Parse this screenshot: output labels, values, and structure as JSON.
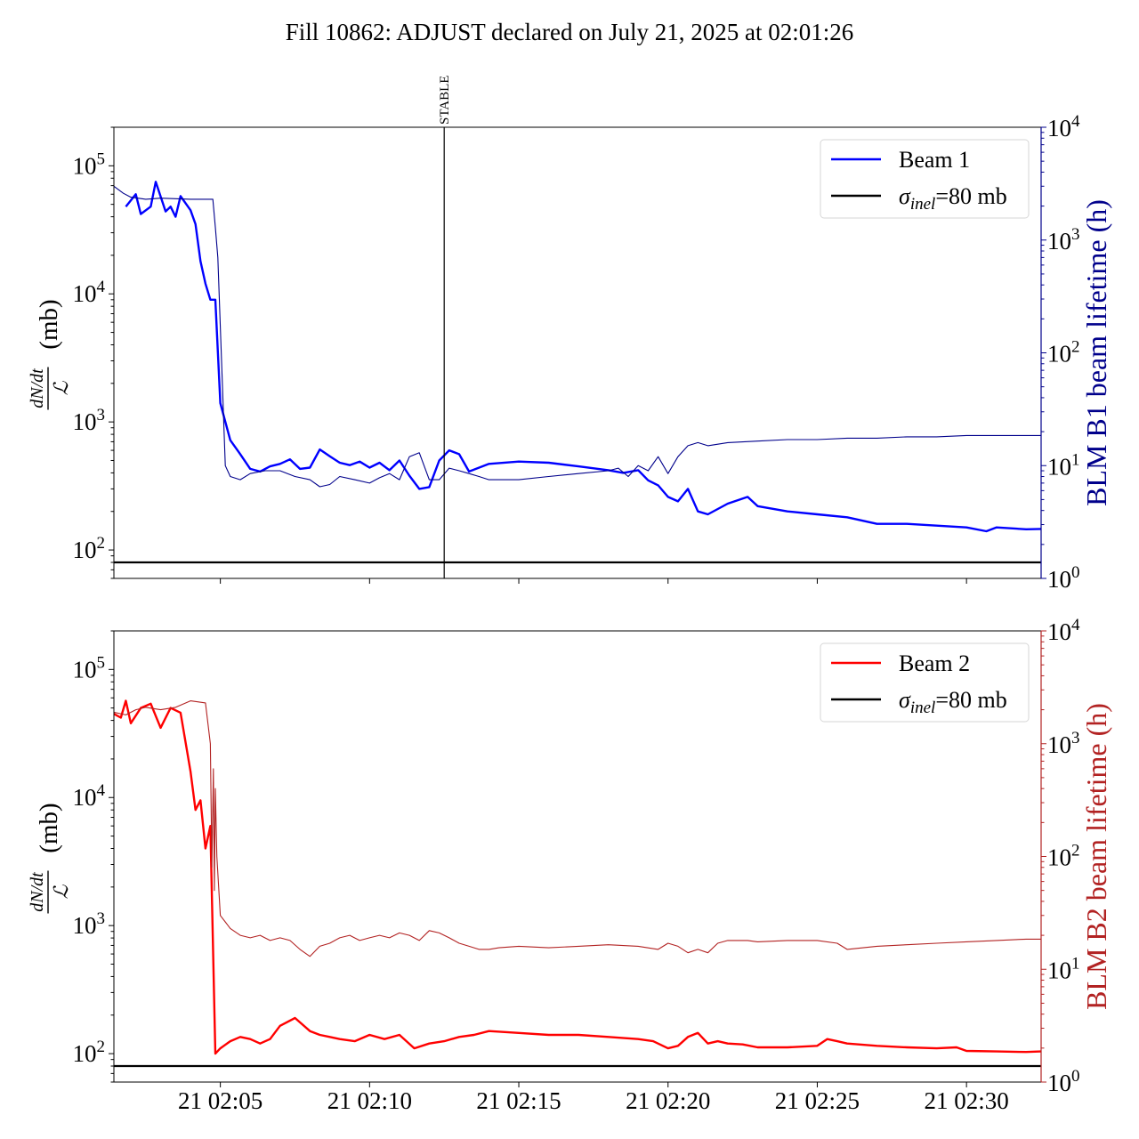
{
  "figure": {
    "title": "Fill 10862: ADJUST declared on July 21, 2025 at 02:01:26"
  },
  "chart_data": [
    {
      "type": "line",
      "panel": "top",
      "xaxis": {
        "type": "time",
        "range": [
          "2025-07-21 02:01:26",
          "2025-07-21 02:32:30"
        ],
        "tick_labels": [
          "21 02:05",
          "21 02:10",
          "21 02:15",
          "21 02:20",
          "21 02:25",
          "21 02:30"
        ],
        "tick_labels_shown": false
      },
      "ylabel": {
        "fraction_top": "dN/dt",
        "fraction_bottom": "ℒ",
        "unit": "(mb)"
      },
      "y_scale": "log",
      "ylim": [
        60,
        200000
      ],
      "y_ticks": [
        {
          "base": "10",
          "exp": "2"
        },
        {
          "base": "10",
          "exp": "3"
        },
        {
          "base": "10",
          "exp": "4"
        },
        {
          "base": "10",
          "exp": "5"
        }
      ],
      "y2label": "BLM B1 beam lifetime (h)",
      "y2_scale": "log",
      "y2lim": [
        1,
        10000
      ],
      "y2_ticks": [
        {
          "base": "10",
          "exp": "0"
        },
        {
          "base": "10",
          "exp": "1"
        },
        {
          "base": "10",
          "exp": "2"
        },
        {
          "base": "10",
          "exp": "3"
        },
        {
          "base": "10",
          "exp": "4"
        }
      ],
      "y2_color": "#00008b",
      "annotations": [
        {
          "label": "STABLE",
          "x": "2025-07-21 02:12:30",
          "type": "vline"
        }
      ],
      "hline": {
        "y": 80,
        "label_prefix": "σ",
        "label_sub": "inel",
        "label_suffix": "=80 mb",
        "color": "#000000"
      },
      "legend": {
        "placement": "top-right"
      },
      "series": [
        {
          "name": "Beam 1",
          "axis": "left",
          "color": "#0000ff",
          "x": [
            "02:01:50",
            "02:02:10",
            "02:02:20",
            "02:02:40",
            "02:02:50",
            "02:03:10",
            "02:03:20",
            "02:03:30",
            "02:03:40",
            "02:04:00",
            "02:04:10",
            "02:04:20",
            "02:04:30",
            "02:04:40",
            "02:04:50",
            "02:05:00",
            "02:05:20",
            "02:05:40",
            "02:06:00",
            "02:06:20",
            "02:06:40",
            "02:07:00",
            "02:07:20",
            "02:07:40",
            "02:08:00",
            "02:08:20",
            "02:08:40",
            "02:09:00",
            "02:09:20",
            "02:09:40",
            "02:10:00",
            "02:10:20",
            "02:10:40",
            "02:11:00",
            "02:11:20",
            "02:11:40",
            "02:12:00",
            "02:12:20",
            "02:12:40",
            "02:13:00",
            "02:13:20",
            "02:14:00",
            "02:15:00",
            "02:16:00",
            "02:17:00",
            "02:18:00",
            "02:18:30",
            "02:19:00",
            "02:19:20",
            "02:19:40",
            "02:20:00",
            "02:20:20",
            "02:20:40",
            "02:21:00",
            "02:21:20",
            "02:22:00",
            "02:22:40",
            "02:23:00",
            "02:24:00",
            "02:25:00",
            "02:26:00",
            "02:27:00",
            "02:28:00",
            "02:29:00",
            "02:30:00",
            "02:30:40",
            "02:31:00",
            "02:32:00",
            "02:32:30"
          ],
          "values": [
            48000,
            60000,
            42000,
            48000,
            75000,
            44000,
            48000,
            40000,
            58000,
            45000,
            35000,
            18000,
            12000,
            9000,
            9000,
            1400,
            720,
            560,
            430,
            410,
            450,
            470,
            510,
            430,
            440,
            610,
            540,
            480,
            460,
            490,
            440,
            480,
            420,
            500,
            380,
            300,
            310,
            500,
            600,
            560,
            410,
            470,
            490,
            480,
            450,
            420,
            400,
            420,
            350,
            320,
            260,
            240,
            300,
            200,
            190,
            230,
            260,
            220,
            200,
            190,
            180,
            160,
            160,
            155,
            150,
            140,
            150,
            145,
            146
          ]
        },
        {
          "name": "BLM B1 beam lifetime",
          "axis": "right",
          "color": "#00008b",
          "x": [
            "02:01:26",
            "02:01:45",
            "02:02:00",
            "02:02:30",
            "02:03:00",
            "02:04:00",
            "02:04:45",
            "02:04:50",
            "02:04:55",
            "02:05:10",
            "02:05:20",
            "02:05:40",
            "02:06:00",
            "02:06:30",
            "02:07:00",
            "02:07:30",
            "02:08:00",
            "02:08:20",
            "02:08:40",
            "02:09:00",
            "02:09:30",
            "02:10:00",
            "02:10:20",
            "02:10:40",
            "02:11:00",
            "02:11:20",
            "02:11:40",
            "02:12:00",
            "02:12:20",
            "02:12:40",
            "02:13:00",
            "02:13:20",
            "02:13:40",
            "02:14:00",
            "02:15:00",
            "02:16:00",
            "02:17:00",
            "02:18:00",
            "02:18:20",
            "02:18:40",
            "02:19:00",
            "02:19:20",
            "02:19:40",
            "02:20:00",
            "02:20:20",
            "02:20:40",
            "02:21:00",
            "02:21:20",
            "02:22:00",
            "02:23:00",
            "02:24:00",
            "02:25:00",
            "02:26:00",
            "02:27:00",
            "02:28:00",
            "02:29:00",
            "02:30:00",
            "02:31:00",
            "02:32:00",
            "02:32:30"
          ],
          "values": [
            3000,
            2600,
            2400,
            2300,
            2350,
            2300,
            2300,
            1300,
            700,
            10,
            8,
            7.5,
            8.5,
            9,
            9,
            8,
            7.5,
            6.5,
            6.8,
            8,
            7.5,
            7,
            7.8,
            8.5,
            7.5,
            12,
            13,
            7.5,
            7.5,
            9.5,
            9,
            8.5,
            8,
            7.5,
            7.5,
            8,
            8.5,
            9,
            9.5,
            8,
            10,
            9,
            12,
            8.5,
            12,
            15,
            16,
            15,
            16,
            16.5,
            17,
            17,
            17.5,
            17.5,
            18,
            18,
            18.5,
            18.5,
            18.5,
            18.5
          ]
        }
      ]
    },
    {
      "type": "line",
      "panel": "bottom",
      "xaxis": {
        "type": "time",
        "range": [
          "2025-07-21 02:01:26",
          "2025-07-21 02:32:30"
        ],
        "tick_labels": [
          "21 02:05",
          "21 02:10",
          "21 02:15",
          "21 02:20",
          "21 02:25",
          "21 02:30"
        ],
        "tick_labels_shown": true
      },
      "ylabel": {
        "fraction_top": "dN/dt",
        "fraction_bottom": "ℒ",
        "unit": "(mb)"
      },
      "y_scale": "log",
      "ylim": [
        60,
        200000
      ],
      "y_ticks": [
        {
          "base": "10",
          "exp": "2"
        },
        {
          "base": "10",
          "exp": "3"
        },
        {
          "base": "10",
          "exp": "4"
        },
        {
          "base": "10",
          "exp": "5"
        }
      ],
      "y2label": "BLM B2 beam lifetime (h)",
      "y2_scale": "log",
      "y2lim": [
        1,
        10000
      ],
      "y2_ticks": [
        {
          "base": "10",
          "exp": "0"
        },
        {
          "base": "10",
          "exp": "1"
        },
        {
          "base": "10",
          "exp": "2"
        },
        {
          "base": "10",
          "exp": "3"
        },
        {
          "base": "10",
          "exp": "4"
        }
      ],
      "y2_color": "#b22222",
      "hline": {
        "y": 80,
        "label_prefix": "σ",
        "label_sub": "inel",
        "label_suffix": "=80 mb",
        "color": "#000000"
      },
      "legend": {
        "placement": "top-right"
      },
      "series": [
        {
          "name": "Beam 2",
          "axis": "left",
          "color": "#ff0000",
          "x": [
            "02:01:26",
            "02:01:40",
            "02:01:50",
            "02:02:00",
            "02:02:20",
            "02:02:40",
            "02:03:00",
            "02:03:20",
            "02:03:40",
            "02:04:00",
            "02:04:10",
            "02:04:20",
            "02:04:30",
            "02:04:40",
            "02:04:50",
            "02:05:00",
            "02:05:20",
            "02:05:40",
            "02:06:00",
            "02:06:20",
            "02:06:40",
            "02:07:00",
            "02:07:30",
            "02:08:00",
            "02:08:20",
            "02:08:40",
            "02:09:00",
            "02:09:30",
            "02:10:00",
            "02:10:30",
            "02:11:00",
            "02:11:30",
            "02:12:00",
            "02:12:30",
            "02:13:00",
            "02:13:30",
            "02:14:00",
            "02:15:00",
            "02:16:00",
            "02:17:00",
            "02:18:00",
            "02:19:00",
            "02:19:30",
            "02:20:00",
            "02:20:20",
            "02:20:40",
            "02:21:00",
            "02:21:20",
            "02:21:40",
            "02:22:00",
            "02:22:30",
            "02:23:00",
            "02:24:00",
            "02:25:00",
            "02:25:20",
            "02:25:40",
            "02:26:00",
            "02:27:00",
            "02:28:00",
            "02:29:00",
            "02:29:40",
            "02:30:00",
            "02:31:00",
            "02:32:00",
            "02:32:30"
          ],
          "values": [
            45000,
            42000,
            57000,
            38000,
            50000,
            54000,
            35000,
            50000,
            46000,
            16000,
            8000,
            9500,
            4000,
            6000,
            100,
            110,
            125,
            135,
            130,
            120,
            130,
            165,
            190,
            150,
            140,
            135,
            130,
            125,
            140,
            130,
            140,
            110,
            120,
            125,
            135,
            140,
            150,
            145,
            140,
            140,
            135,
            130,
            125,
            110,
            115,
            135,
            145,
            120,
            125,
            120,
            118,
            112,
            112,
            115,
            130,
            125,
            120,
            115,
            112,
            110,
            112,
            105,
            104,
            103,
            104
          ]
        },
        {
          "name": "BLM B2 beam lifetime",
          "axis": "right",
          "color": "#b22222",
          "x": [
            "02:01:26",
            "02:01:50",
            "02:02:10",
            "02:02:30",
            "02:03:00",
            "02:03:30",
            "02:04:00",
            "02:04:30",
            "02:04:40",
            "02:04:43",
            "02:04:46",
            "02:04:48",
            "02:04:50",
            "02:04:53",
            "02:05:00",
            "02:05:20",
            "02:05:40",
            "02:06:00",
            "02:06:20",
            "02:06:40",
            "02:07:00",
            "02:07:20",
            "02:07:40",
            "02:08:00",
            "02:08:20",
            "02:08:40",
            "02:09:00",
            "02:09:20",
            "02:09:40",
            "02:10:00",
            "02:10:20",
            "02:10:40",
            "02:11:00",
            "02:11:20",
            "02:11:40",
            "02:12:00",
            "02:12:20",
            "02:12:40",
            "02:13:00",
            "02:13:20",
            "02:13:40",
            "02:14:00",
            "02:14:20",
            "02:15:00",
            "02:16:00",
            "02:17:00",
            "02:18:00",
            "02:19:00",
            "02:19:40",
            "02:20:00",
            "02:20:20",
            "02:20:40",
            "02:21:00",
            "02:21:20",
            "02:21:40",
            "02:22:00",
            "02:22:40",
            "02:23:00",
            "02:24:00",
            "02:25:00",
            "02:25:40",
            "02:26:00",
            "02:27:00",
            "02:28:00",
            "02:29:00",
            "02:30:00",
            "02:31:00",
            "02:32:00",
            "02:32:30"
          ],
          "values": [
            1900,
            1800,
            2000,
            2100,
            2000,
            2100,
            2400,
            2300,
            1000,
            80,
            600,
            50,
            400,
            100,
            30,
            23,
            20,
            19,
            20,
            18,
            19,
            18,
            15,
            13,
            16,
            17,
            19,
            20,
            18,
            19,
            20,
            19,
            21,
            20,
            18,
            22,
            21,
            19,
            17,
            16,
            15,
            15,
            15.5,
            16,
            15.5,
            16,
            16.5,
            16,
            15,
            17,
            16,
            14,
            15,
            14,
            17,
            18,
            18,
            17.5,
            18,
            18,
            17,
            15,
            16,
            16.5,
            17,
            17.5,
            18,
            18.5,
            18.5
          ]
        }
      ]
    }
  ]
}
